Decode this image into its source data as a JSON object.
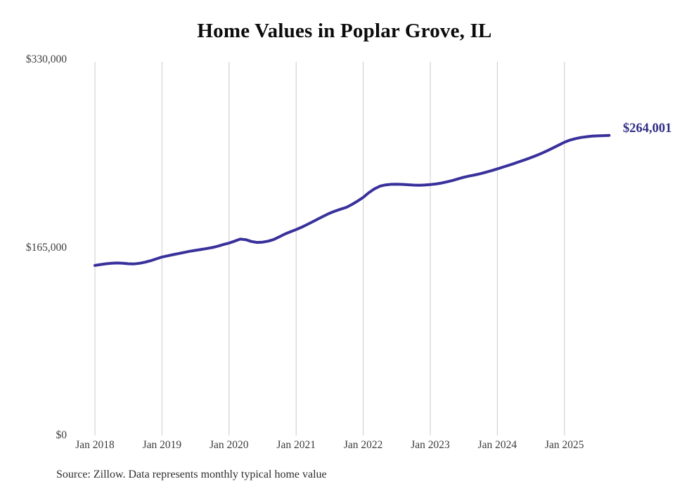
{
  "title": "Home Values in Poplar Grove, IL",
  "source_note": "Source: Zillow. Data represents monthly typical home value",
  "end_label": "$264,001",
  "colors": {
    "line": "#39319B",
    "end_label": "#312D85",
    "gridline": "#CBCBCB",
    "title": "#0B0B0B",
    "axis_label": "#3C3C3C",
    "source": "#2E2E2E",
    "background": "#FFFFFF"
  },
  "chart_data": {
    "type": "line",
    "title": "Home Values in Poplar Grove, IL",
    "xlabel": "",
    "ylabel": "",
    "ylim": [
      0,
      330000
    ],
    "grid": "vertical-only",
    "legend": "none",
    "y_ticks": [
      {
        "value": 0,
        "label": "$0"
      },
      {
        "value": 165000,
        "label": "$165,000"
      },
      {
        "value": 330000,
        "label": "$330,000"
      }
    ],
    "x_ticks": [
      "Jan 2018",
      "Jan 2019",
      "Jan 2020",
      "Jan 2021",
      "Jan 2022",
      "Jan 2023",
      "Jan 2024",
      "Jan 2025"
    ],
    "series": [
      {
        "name": "Monthly typical home value",
        "start_month": "2018-01",
        "end_month": "2025-09",
        "values": [
          149600,
          150400,
          151100,
          151600,
          151800,
          151500,
          151100,
          151000,
          151500,
          152500,
          153800,
          155400,
          157000,
          158100,
          159100,
          160100,
          161100,
          162100,
          162900,
          163700,
          164500,
          165400,
          166600,
          168000,
          169300,
          171000,
          172800,
          172300,
          170700,
          169900,
          170100,
          171000,
          172500,
          174800,
          177300,
          179300,
          181200,
          183300,
          185700,
          188200,
          190700,
          193200,
          195600,
          197500,
          199200,
          200800,
          203300,
          206300,
          209500,
          213600,
          217000,
          219400,
          220500,
          221000,
          221100,
          220900,
          220600,
          220300,
          220100,
          220400,
          220800,
          221300,
          222100,
          223200,
          224400,
          225800,
          227200,
          228300,
          229300,
          230400,
          231700,
          233100,
          234600,
          236100,
          237700,
          239300,
          241000,
          242700,
          244500,
          246400,
          248500,
          250700,
          253100,
          255600,
          258000,
          259900,
          261200,
          262200,
          262900,
          263400,
          263600,
          263800,
          264001
        ]
      }
    ],
    "last_point_label": "$264,001",
    "last_point_value": 264001
  }
}
